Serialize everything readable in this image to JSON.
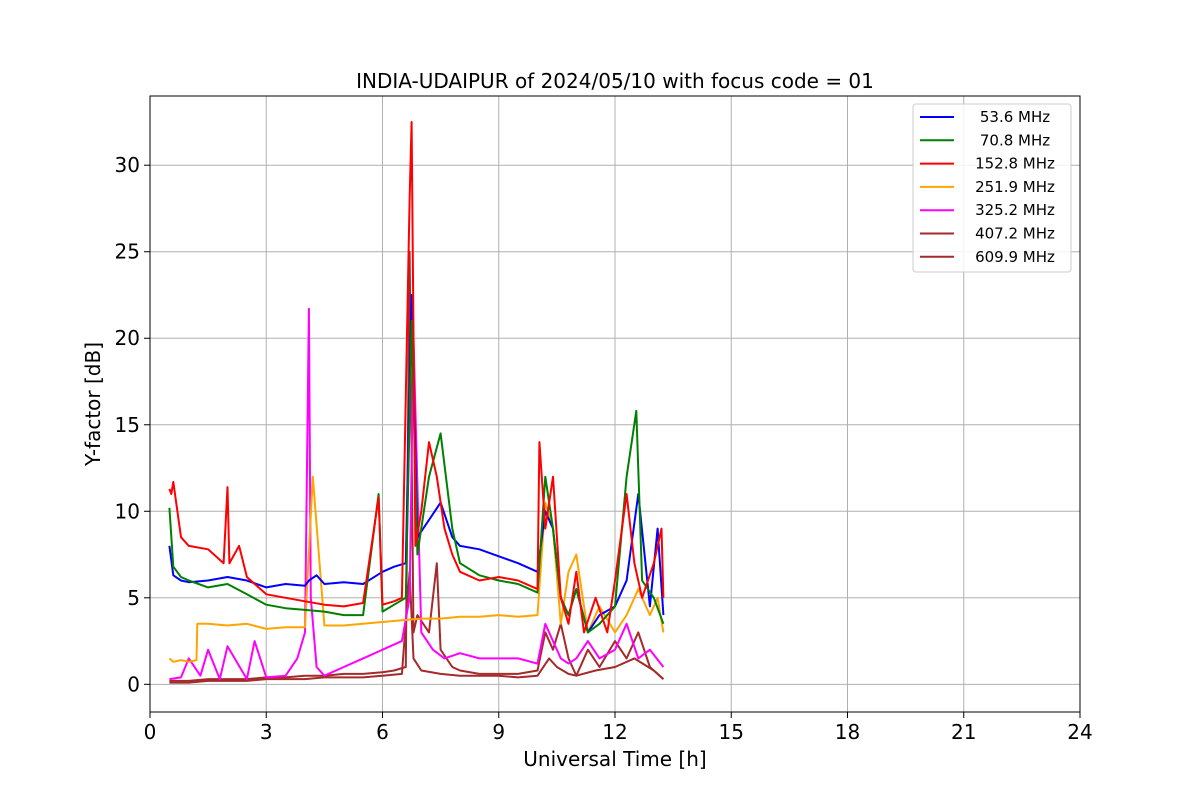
{
  "chart_data": {
    "type": "line",
    "title": "INDIA-UDAIPUR of 2024/05/10 with focus code = 01",
    "xlabel": "Universal Time [h]",
    "ylabel": "Y-factor [dB]",
    "xlim": [
      0,
      24
    ],
    "ylim": [
      -1.6,
      34
    ],
    "xticks": [
      0,
      3,
      6,
      9,
      12,
      15,
      18,
      21,
      24
    ],
    "yticks": [
      0,
      5,
      10,
      15,
      20,
      25,
      30
    ],
    "grid": true,
    "legend_position": "top-right",
    "series": [
      {
        "name": "53.6 MHz",
        "color": "#0000ff",
        "x": [
          0.5,
          0.6,
          0.8,
          1.0,
          1.5,
          2.0,
          2.5,
          3.0,
          3.5,
          4.0,
          4.1,
          4.3,
          4.5,
          5.0,
          5.5,
          6.0,
          6.3,
          6.6,
          6.75,
          6.9,
          7.2,
          7.5,
          7.8,
          8.0,
          8.5,
          9.0,
          9.5,
          10.0,
          10.2,
          10.4,
          10.6,
          10.8,
          11.0,
          11.3,
          11.6,
          12.0,
          12.3,
          12.6,
          12.9,
          13.1,
          13.25
        ],
        "values": [
          8.0,
          6.3,
          6.0,
          5.9,
          6.0,
          6.2,
          6.0,
          5.6,
          5.8,
          5.7,
          6.0,
          6.3,
          5.8,
          5.9,
          5.8,
          6.5,
          6.8,
          7.0,
          22.5,
          8.5,
          9.5,
          10.5,
          8.5,
          8.0,
          7.8,
          7.4,
          7.0,
          6.5,
          10.0,
          9.0,
          5.0,
          4.0,
          5.5,
          3.0,
          4.0,
          4.5,
          6.0,
          11.0,
          4.5,
          9.0,
          4.0
        ]
      },
      {
        "name": "70.8 MHz",
        "color": "#008000",
        "x": [
          0.5,
          0.6,
          0.8,
          1.0,
          1.5,
          2.0,
          2.5,
          3.0,
          3.5,
          4.0,
          4.5,
          5.0,
          5.5,
          5.9,
          6.0,
          6.3,
          6.6,
          6.75,
          6.9,
          7.2,
          7.5,
          7.8,
          8.0,
          8.5,
          9.0,
          9.5,
          10.0,
          10.2,
          10.4,
          10.6,
          10.8,
          11.0,
          11.3,
          11.6,
          12.0,
          12.3,
          12.55,
          12.7,
          13.0,
          13.25
        ],
        "values": [
          10.2,
          6.8,
          6.2,
          6.0,
          5.6,
          5.8,
          5.2,
          4.6,
          4.4,
          4.3,
          4.2,
          4.0,
          4.0,
          11.0,
          4.2,
          4.6,
          5.0,
          21.0,
          7.5,
          12.0,
          14.5,
          9.0,
          7.0,
          6.3,
          6.0,
          5.8,
          5.3,
          12.0,
          9.0,
          5.0,
          4.0,
          5.5,
          3.0,
          3.5,
          4.5,
          12.0,
          15.8,
          6.0,
          5.0,
          3.5
        ]
      },
      {
        "name": "152.8 MHz",
        "color": "#ff0000",
        "x": [
          0.5,
          0.55,
          0.6,
          0.8,
          1.0,
          1.5,
          1.9,
          2.0,
          2.05,
          2.3,
          2.5,
          3.0,
          3.5,
          4.0,
          4.5,
          5.0,
          5.5,
          5.9,
          6.0,
          6.3,
          6.5,
          6.7,
          6.75,
          6.85,
          7.0,
          7.2,
          7.4,
          7.6,
          7.8,
          8.0,
          8.5,
          9.0,
          9.5,
          10.0,
          10.05,
          10.2,
          10.4,
          10.6,
          10.8,
          11.0,
          11.2,
          11.5,
          11.8,
          12.0,
          12.3,
          12.5,
          12.7,
          13.0,
          13.2,
          13.25
        ],
        "values": [
          11.3,
          11.0,
          11.7,
          8.5,
          8.0,
          7.8,
          7.0,
          11.4,
          7.0,
          8.0,
          6.2,
          5.2,
          5.0,
          4.8,
          4.6,
          4.5,
          4.7,
          10.8,
          4.6,
          4.8,
          5.0,
          28.0,
          32.5,
          8.0,
          10.0,
          14.0,
          12.0,
          9.0,
          7.5,
          6.5,
          6.0,
          6.2,
          6.0,
          5.5,
          14.0,
          9.0,
          12.0,
          5.0,
          3.5,
          6.5,
          3.0,
          5.0,
          3.0,
          6.0,
          11.0,
          7.0,
          5.0,
          7.0,
          9.0,
          5.0
        ]
      },
      {
        "name": "251.9 MHz",
        "color": "#ffa500",
        "x": [
          0.5,
          0.6,
          0.8,
          1.0,
          1.2,
          1.22,
          1.5,
          2.0,
          2.5,
          3.0,
          3.5,
          4.0,
          4.2,
          4.5,
          5.0,
          5.5,
          6.0,
          6.5,
          7.0,
          7.5,
          8.0,
          8.5,
          9.0,
          9.5,
          10.0,
          10.2,
          10.4,
          10.6,
          10.8,
          11.0,
          11.3,
          11.6,
          12.0,
          12.3,
          12.6,
          12.9,
          13.1,
          13.25
        ],
        "values": [
          1.5,
          1.3,
          1.4,
          1.3,
          1.4,
          3.5,
          3.5,
          3.4,
          3.5,
          3.2,
          3.3,
          3.3,
          12.0,
          3.4,
          3.4,
          3.5,
          3.6,
          3.7,
          3.8,
          3.8,
          3.9,
          3.9,
          4.0,
          3.9,
          4.0,
          10.5,
          9.0,
          3.5,
          6.5,
          7.5,
          3.0,
          4.5,
          3.0,
          4.0,
          5.5,
          4.0,
          5.0,
          3.0
        ]
      },
      {
        "name": "325.2 MHz",
        "color": "#ff00ff",
        "x": [
          0.5,
          0.8,
          1.0,
          1.3,
          1.5,
          1.8,
          2.0,
          2.5,
          2.7,
          3.0,
          3.5,
          3.8,
          4.0,
          4.1,
          4.15,
          4.3,
          4.5,
          5.0,
          5.5,
          6.0,
          6.5,
          6.7,
          6.8,
          7.0,
          7.3,
          7.6,
          8.0,
          8.5,
          9.0,
          9.5,
          10.0,
          10.2,
          10.4,
          10.6,
          10.8,
          11.0,
          11.3,
          11.6,
          12.0,
          12.3,
          12.6,
          12.9,
          13.25
        ],
        "values": [
          0.3,
          0.4,
          1.5,
          0.5,
          2.0,
          0.3,
          2.2,
          0.3,
          2.5,
          0.4,
          0.5,
          1.5,
          3.0,
          21.7,
          5.0,
          1.0,
          0.5,
          1.0,
          1.5,
          2.0,
          2.5,
          5.0,
          20.0,
          3.0,
          2.0,
          1.5,
          1.8,
          1.5,
          1.5,
          1.5,
          1.2,
          3.5,
          2.5,
          1.5,
          1.2,
          1.5,
          2.5,
          1.5,
          2.0,
          3.5,
          1.5,
          2.0,
          1.0
        ]
      },
      {
        "name": "407.2 MHz",
        "color": "#a52a2a",
        "x": [
          0.5,
          1.0,
          1.5,
          2.0,
          2.5,
          3.0,
          3.5,
          4.0,
          4.5,
          5.0,
          5.5,
          6.0,
          6.3,
          6.6,
          6.7,
          6.8,
          6.9,
          7.2,
          7.4,
          7.5,
          7.8,
          8.0,
          8.5,
          9.0,
          9.5,
          10.0,
          10.2,
          10.4,
          10.6,
          10.8,
          11.0,
          11.3,
          11.6,
          12.0,
          12.3,
          12.6,
          12.9,
          13.25
        ],
        "values": [
          0.2,
          0.2,
          0.3,
          0.3,
          0.3,
          0.4,
          0.4,
          0.5,
          0.5,
          0.6,
          0.6,
          0.7,
          0.8,
          1.0,
          25.0,
          3.0,
          4.0,
          3.0,
          7.0,
          2.0,
          1.0,
          0.8,
          0.6,
          0.6,
          0.6,
          0.8,
          3.0,
          2.0,
          3.5,
          1.5,
          0.5,
          2.0,
          1.0,
          2.5,
          1.5,
          3.0,
          1.0,
          0.3
        ]
      },
      {
        "name": "609.9 MHz",
        "color": "#a52a2a",
        "x": [
          0.5,
          1.0,
          1.5,
          2.0,
          2.5,
          3.0,
          3.5,
          4.0,
          4.5,
          5.0,
          5.5,
          6.0,
          6.5,
          6.7,
          6.8,
          7.0,
          7.5,
          8.0,
          8.5,
          9.0,
          9.5,
          10.0,
          10.3,
          10.5,
          10.8,
          11.0,
          11.5,
          12.0,
          12.5,
          13.0,
          13.25
        ],
        "values": [
          0.1,
          0.1,
          0.2,
          0.2,
          0.2,
          0.3,
          0.3,
          0.3,
          0.4,
          0.4,
          0.4,
          0.5,
          0.6,
          6.5,
          1.5,
          0.8,
          0.6,
          0.5,
          0.5,
          0.5,
          0.4,
          0.5,
          1.5,
          1.0,
          0.6,
          0.5,
          0.8,
          1.0,
          1.5,
          0.8,
          0.3
        ]
      }
    ]
  }
}
